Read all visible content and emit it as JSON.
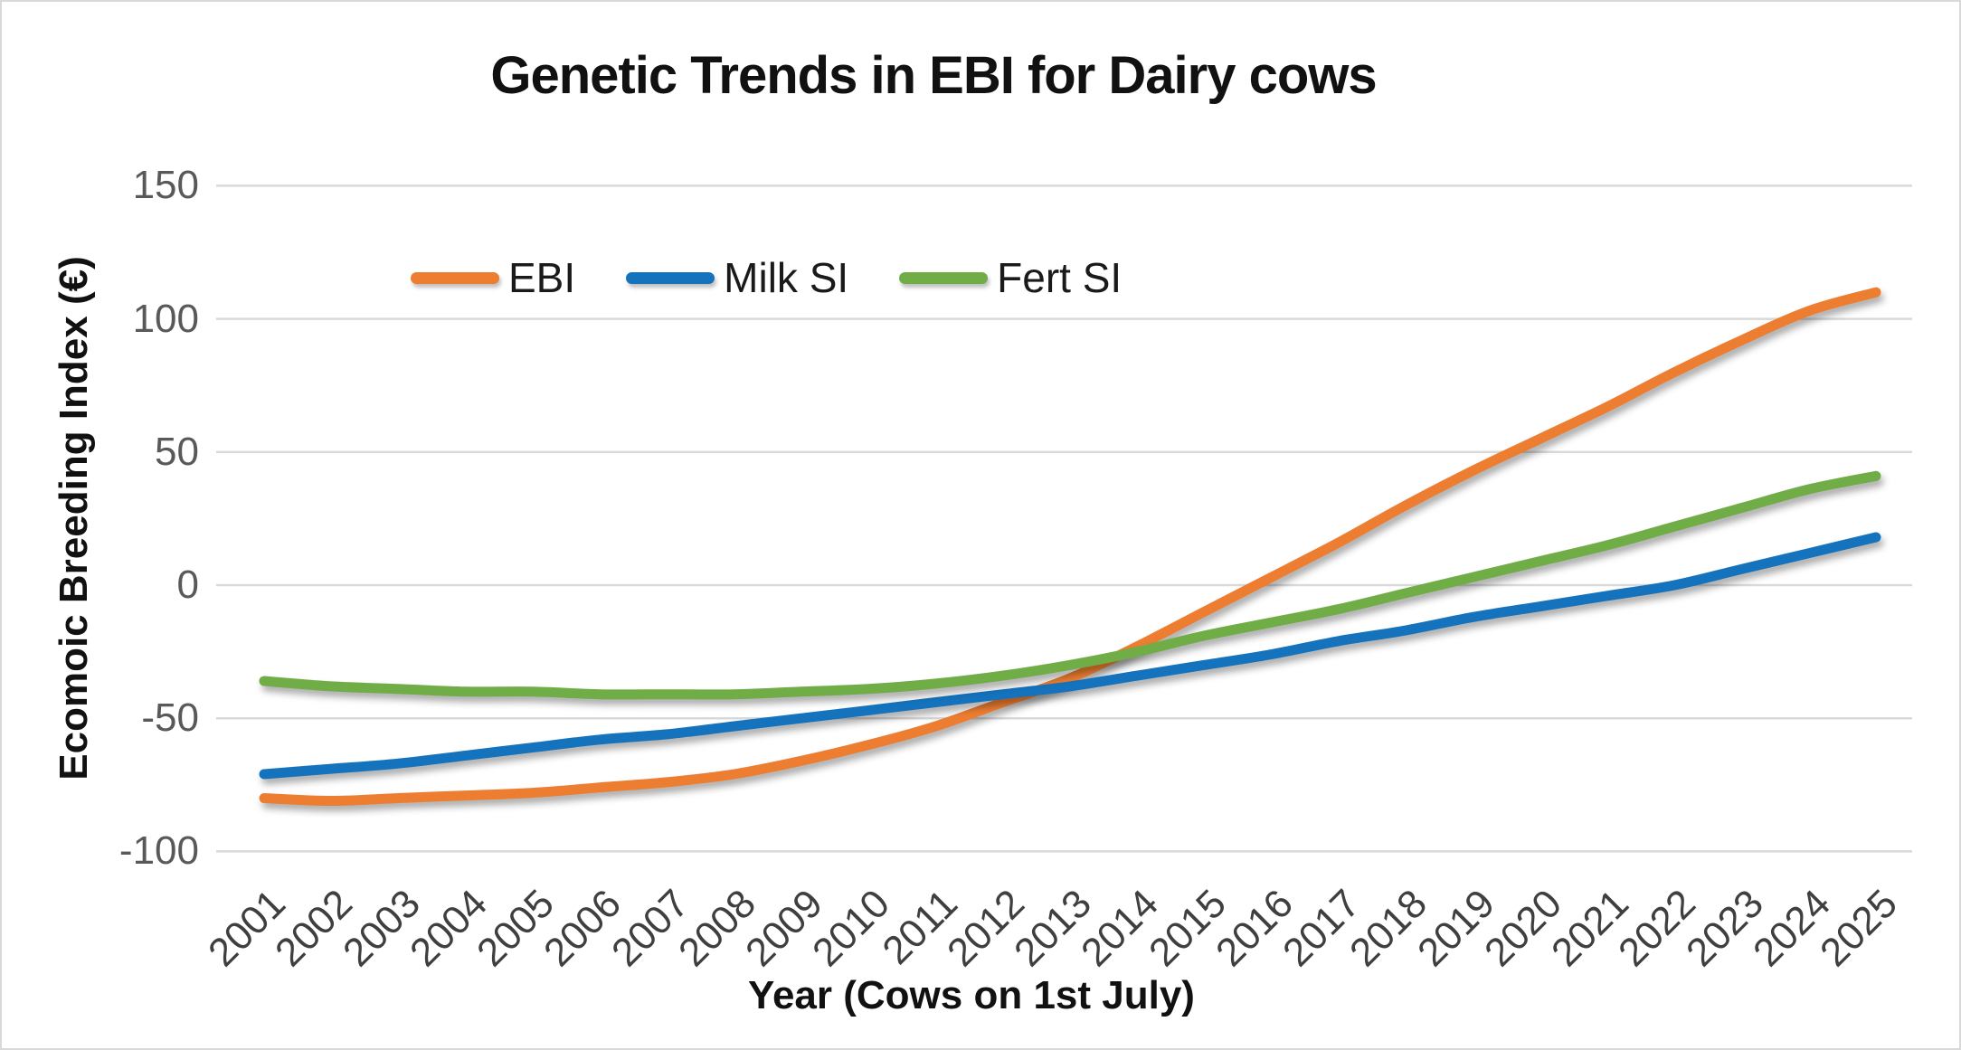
{
  "title": "Genetic Trends in EBI for Dairy cows",
  "chart_data": {
    "type": "line",
    "smoothed": true,
    "title": "Genetic Trends in EBI for Dairy cows",
    "xlabel": "Year (Cows on 1st July)",
    "ylabel": "Ecomoic Breeding Index (€)",
    "categories": [
      2001,
      2002,
      2003,
      2004,
      2005,
      2006,
      2007,
      2008,
      2009,
      2010,
      2011,
      2012,
      2013,
      2014,
      2015,
      2016,
      2017,
      2018,
      2019,
      2020,
      2021,
      2022,
      2023,
      2024,
      2025
    ],
    "series": [
      {
        "name": "EBI",
        "color": "#ED7D31",
        "values": [
          -80,
          -81,
          -80,
          -79,
          -78,
          -76,
          -74,
          -71,
          -66,
          -60,
          -53,
          -44,
          -35,
          -23,
          -10,
          3,
          16,
          30,
          43,
          55,
          67,
          80,
          92,
          103,
          110
        ]
      },
      {
        "name": "Milk SI",
        "color": "#1473BC",
        "values": [
          -71,
          -69,
          -67,
          -64,
          -61,
          -58,
          -56,
          -53,
          -50,
          -47,
          -44,
          -41,
          -38,
          -34,
          -30,
          -26,
          -21,
          -17,
          -12,
          -8,
          -4,
          0,
          6,
          12,
          18
        ]
      },
      {
        "name": "Fert SI",
        "color": "#70AD47",
        "values": [
          -36,
          -38,
          -39,
          -40,
          -40,
          -41,
          -41,
          -41,
          -40,
          -39,
          -37,
          -34,
          -30,
          -25,
          -19,
          -14,
          -9,
          -3,
          3,
          9,
          15,
          22,
          29,
          36,
          41
        ]
      }
    ],
    "ylim": [
      -100,
      150
    ],
    "yticks": [
      150,
      100,
      50,
      0,
      -50,
      -100
    ],
    "grid": true,
    "gridline_color": "#D9D9D9",
    "y_tick_label_color": "#595959",
    "x_tick_label_color": "#3F3F3F",
    "legend_position": "top-left-inside"
  }
}
